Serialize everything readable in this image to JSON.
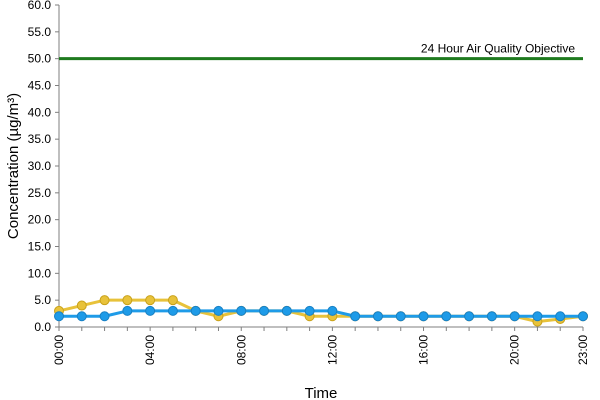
{
  "chart_data": {
    "type": "line",
    "xlabel": "Time",
    "ylabel": "Concentration (µg/m³)",
    "ylim": [
      0,
      60
    ],
    "y_ticks": [
      "0.0",
      "5.0",
      "10.0",
      "15.0",
      "20.0",
      "25.0",
      "30.0",
      "35.0",
      "40.0",
      "45.0",
      "50.0",
      "55.0",
      "60.0"
    ],
    "x": [
      "00:00",
      "01:00",
      "02:00",
      "03:00",
      "04:00",
      "05:00",
      "06:00",
      "07:00",
      "08:00",
      "09:00",
      "10:00",
      "11:00",
      "12:00",
      "13:00",
      "14:00",
      "15:00",
      "16:00",
      "17:00",
      "18:00",
      "19:00",
      "20:00",
      "21:00",
      "22:00",
      "23:00"
    ],
    "x_ticks": [
      "00:00",
      "04:00",
      "08:00",
      "12:00",
      "16:00",
      "20:00",
      "23:00"
    ],
    "grid": false,
    "series": [
      {
        "color": "#E8C23A",
        "values": [
          3,
          4,
          5,
          5,
          5,
          5,
          3,
          2,
          3,
          3,
          3,
          2,
          2,
          2,
          2,
          2,
          2,
          2,
          2,
          2,
          2,
          1,
          1.5,
          2
        ]
      },
      {
        "color": "#1E9BE8",
        "values": [
          2,
          2,
          2,
          3,
          3,
          3,
          3,
          3,
          3,
          3,
          3,
          3,
          3,
          2,
          2,
          2,
          2,
          2,
          2,
          2,
          2,
          2,
          2,
          2
        ]
      }
    ],
    "reference_line": {
      "label": "24 Hour Air Quality Objective",
      "value": 50,
      "color": "#1E7A1E"
    }
  }
}
